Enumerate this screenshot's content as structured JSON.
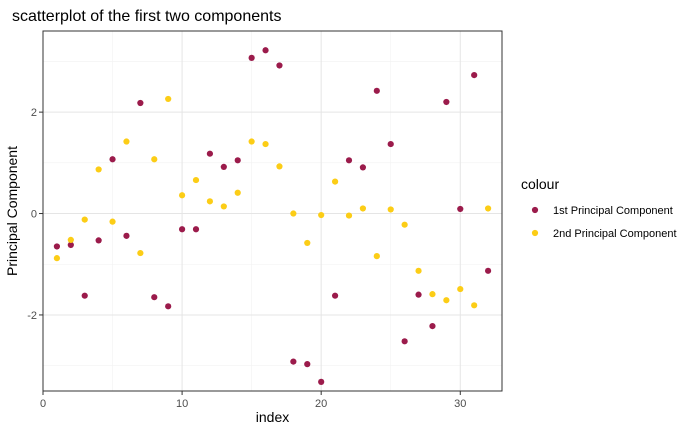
{
  "chart_data": {
    "type": "scatter",
    "title": "scatterplot of the first two components",
    "xlabel": "index",
    "ylabel": "Principal Component",
    "xlim": [
      0,
      33
    ],
    "ylim": [
      -3.5,
      3.6
    ],
    "x_ticks": [
      0,
      10,
      20,
      30
    ],
    "y_ticks": [
      -2,
      0,
      2
    ],
    "grid": true,
    "legend": {
      "title": "colour",
      "placement": "right"
    },
    "series": [
      {
        "name": "1st Principal Component",
        "color": "#9b1b4b",
        "x": [
          1,
          2,
          3,
          4,
          5,
          6,
          7,
          8,
          9,
          10,
          11,
          12,
          13,
          14,
          15,
          16,
          17,
          18,
          19,
          20,
          21,
          22,
          23,
          24,
          25,
          26,
          27,
          28,
          29,
          30,
          31,
          32
        ],
        "y": [
          -0.65,
          -0.62,
          -1.62,
          -0.53,
          1.07,
          -0.44,
          2.18,
          -1.65,
          -1.83,
          -0.31,
          -0.31,
          1.18,
          0.92,
          1.05,
          3.07,
          3.22,
          2.92,
          -2.92,
          -2.97,
          -3.32,
          -1.62,
          1.05,
          0.91,
          2.42,
          1.37,
          -2.52,
          -1.6,
          -2.22,
          2.2,
          0.09,
          2.73,
          -1.13
        ]
      },
      {
        "name": "2nd Principal Component",
        "color": "#fccd16",
        "x": [
          1,
          2,
          3,
          4,
          5,
          6,
          7,
          8,
          9,
          10,
          11,
          12,
          13,
          14,
          15,
          16,
          17,
          18,
          19,
          20,
          21,
          22,
          23,
          24,
          25,
          26,
          27,
          28,
          29,
          30,
          31,
          32
        ],
        "y": [
          -0.88,
          -0.52,
          -0.12,
          0.87,
          -0.16,
          1.42,
          -0.78,
          1.07,
          2.26,
          0.36,
          0.66,
          0.24,
          0.14,
          0.41,
          1.42,
          1.37,
          0.93,
          0.0,
          -0.58,
          -0.03,
          0.63,
          -0.04,
          0.1,
          -0.84,
          0.08,
          -0.22,
          -1.13,
          -1.59,
          -1.71,
          -1.49,
          -1.81,
          0.1
        ]
      }
    ]
  }
}
